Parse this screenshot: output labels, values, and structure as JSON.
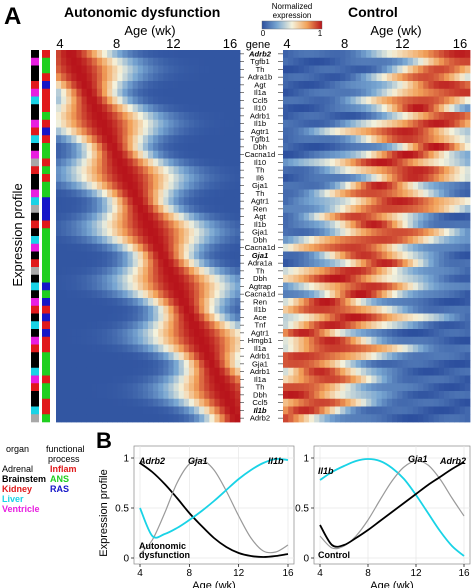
{
  "figure": {
    "panel_a_label": "A",
    "panel_b_label": "B",
    "title_left": "Autonomic dysfunction",
    "title_right": "Control",
    "age_axis_label": "Age (wk)",
    "age_ticks": [
      "4",
      "8",
      "12",
      "16"
    ],
    "colorbar_title_1": "Normalized",
    "colorbar_title_2": "expression",
    "colorbar_min": "0",
    "colorbar_max": "1",
    "gene_column_header": "gene",
    "y_axis_label": "Expression profile",
    "genes": [
      {
        "name": "Adrb2",
        "bold": true
      },
      {
        "name": "Tgfb1",
        "bold": false
      },
      {
        "name": "Th",
        "bold": false
      },
      {
        "name": "Adra1b",
        "bold": false
      },
      {
        "name": "Agt",
        "bold": false
      },
      {
        "name": "Il1a",
        "bold": false
      },
      {
        "name": "Ccl5",
        "bold": false
      },
      {
        "name": "Il10",
        "bold": false
      },
      {
        "name": "Adrb1",
        "bold": false
      },
      {
        "name": "Il1b",
        "bold": false
      },
      {
        "name": "Agtr1",
        "bold": false
      },
      {
        "name": "Tgfb1",
        "bold": false
      },
      {
        "name": "Dbh",
        "bold": false
      },
      {
        "name": "Cacna1d",
        "bold": false
      },
      {
        "name": "Il10",
        "bold": false
      },
      {
        "name": "Th",
        "bold": false
      },
      {
        "name": "Il6",
        "bold": false
      },
      {
        "name": "Gja1",
        "bold": false
      },
      {
        "name": "Th",
        "bold": false
      },
      {
        "name": "Agtr1",
        "bold": false
      },
      {
        "name": "Ren",
        "bold": false
      },
      {
        "name": "Agt",
        "bold": false
      },
      {
        "name": "Il1b",
        "bold": false
      },
      {
        "name": "Gja1",
        "bold": false
      },
      {
        "name": "Dbh",
        "bold": false
      },
      {
        "name": "Cacna1d",
        "bold": false
      },
      {
        "name": "Gja1",
        "bold": true
      },
      {
        "name": "Adra1a",
        "bold": false
      },
      {
        "name": "Th",
        "bold": false
      },
      {
        "name": "Dbh",
        "bold": false
      },
      {
        "name": "Agtrap",
        "bold": false
      },
      {
        "name": "Cacna1d",
        "bold": false
      },
      {
        "name": "Ren",
        "bold": false
      },
      {
        "name": "Il1b",
        "bold": false
      },
      {
        "name": "Ace",
        "bold": false
      },
      {
        "name": "Tnf",
        "bold": false
      },
      {
        "name": "Agtr1",
        "bold": false
      },
      {
        "name": "Hmgb1",
        "bold": false
      },
      {
        "name": "Il1a",
        "bold": false
      },
      {
        "name": "Adrb1",
        "bold": false
      },
      {
        "name": "Gja1",
        "bold": false
      },
      {
        "name": "Adrb1",
        "bold": false
      },
      {
        "name": "Il1a",
        "bold": false
      },
      {
        "name": "Th",
        "bold": false
      },
      {
        "name": "Dbh",
        "bold": false
      },
      {
        "name": "Ccl5",
        "bold": false
      },
      {
        "name": "Il1b",
        "bold": true
      },
      {
        "name": "Adrb2",
        "bold": false
      }
    ],
    "legend": {
      "organ_header": "organ",
      "process_header_1": "functional",
      "process_header_2": "process",
      "organs": [
        {
          "name": "Adrenal",
          "color": "#000000",
          "weight": "normal"
        },
        {
          "name": "Brainstem",
          "color": "#000000",
          "weight": "bold"
        },
        {
          "name": "Kidney",
          "color": "#e0191b",
          "weight": "bold"
        },
        {
          "name": "Liver",
          "color": "#19d3e6",
          "weight": "bold"
        },
        {
          "name": "Ventricle",
          "color": "#e81ee0",
          "weight": "bold"
        }
      ],
      "processes": [
        {
          "name": "Inflam",
          "color": "#e0191b"
        },
        {
          "name": "ANS",
          "color": "#1fcf1f"
        },
        {
          "name": "RAS",
          "color": "#1515c8"
        }
      ]
    },
    "colors": {
      "low": "#3a5cb2",
      "mid": "#f2f0dc",
      "high": "#c0171c",
      "cyan_line": "#19d3e6",
      "gray_line": "#9a9a9a",
      "black_line": "#000000"
    }
  },
  "chart_data": [
    {
      "type": "line",
      "panel": "B-left",
      "annotation": "Autonomic dysfunction",
      "xlabel": "Age (wk)",
      "ylabel": "Expression profile",
      "xlim": [
        4,
        16
      ],
      "ylim": [
        0,
        1
      ],
      "xticks": [
        4,
        8,
        12,
        16
      ],
      "yticks": [
        0,
        0.5,
        1
      ],
      "x": [
        4,
        5,
        6,
        7,
        8,
        9,
        10,
        11,
        12,
        13,
        14,
        15,
        16
      ],
      "series": [
        {
          "name": "Adrb2",
          "color": "#000000",
          "values": [
            0.95,
            0.86,
            0.74,
            0.6,
            0.45,
            0.32,
            0.2,
            0.11,
            0.05,
            0.02,
            0.01,
            0.02,
            0.04
          ]
        },
        {
          "name": "Gja1",
          "color": "#9a9a9a",
          "values": [
            0.04,
            0.18,
            0.45,
            0.75,
            0.94,
            0.98,
            0.88,
            0.67,
            0.42,
            0.2,
            0.07,
            0.06,
            0.13
          ]
        },
        {
          "name": "Il1b",
          "color": "#19d3e6",
          "values": [
            0.5,
            0.22,
            0.24,
            0.3,
            0.38,
            0.47,
            0.57,
            0.68,
            0.79,
            0.88,
            0.95,
            0.99,
            0.98
          ]
        }
      ]
    },
    {
      "type": "line",
      "panel": "B-right",
      "annotation": "Control",
      "xlabel": "Age (wk)",
      "ylabel": "",
      "xlim": [
        4,
        16
      ],
      "ylim": [
        0,
        1
      ],
      "xticks": [
        4,
        8,
        12,
        16
      ],
      "yticks": [
        0,
        0.5,
        1
      ],
      "x": [
        4,
        5,
        6,
        7,
        8,
        9,
        10,
        11,
        12,
        13,
        14,
        15,
        16
      ],
      "series": [
        {
          "name": "Il1b",
          "color": "#19d3e6",
          "values": [
            0.78,
            0.86,
            0.92,
            0.97,
            0.99,
            0.97,
            0.9,
            0.79,
            0.63,
            0.45,
            0.27,
            0.12,
            0.02
          ]
        },
        {
          "name": "Gja1",
          "color": "#9a9a9a",
          "values": [
            0.22,
            0.1,
            0.12,
            0.22,
            0.38,
            0.58,
            0.77,
            0.91,
            0.97,
            0.93,
            0.79,
            0.6,
            0.42
          ]
        },
        {
          "name": "Adrb2",
          "color": "#000000",
          "values": [
            0.33,
            0.13,
            0.13,
            0.2,
            0.28,
            0.37,
            0.46,
            0.55,
            0.64,
            0.73,
            0.81,
            0.89,
            0.96
          ]
        }
      ]
    }
  ]
}
